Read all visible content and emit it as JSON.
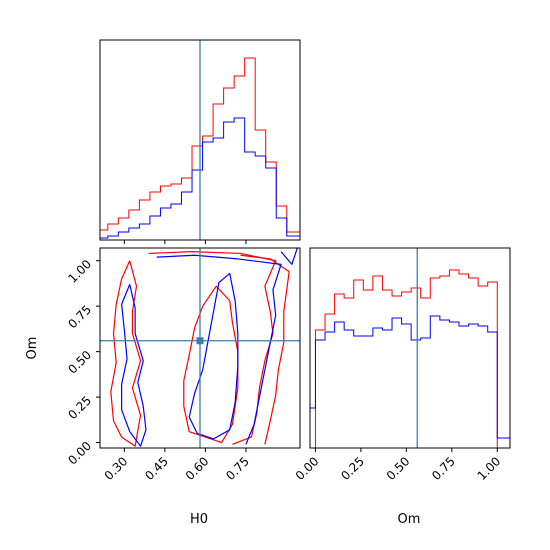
{
  "chart_data": {
    "type": "corner",
    "parameters": [
      "H0",
      "Om"
    ],
    "truth": {
      "H0": 0.58,
      "Om": 0.56
    },
    "colors": {
      "series_1": "#ff0000",
      "series_2": "#0000ff",
      "truth": "#3a7fb0"
    },
    "panels": [
      {
        "id": "hist-h0",
        "type": "step-histogram",
        "x_param": "H0",
        "xlim": [
          0.21,
          0.95
        ],
        "xticks": [
          0.3,
          0.45,
          0.6,
          0.75
        ],
        "yticks_shown": false,
        "ylim": [
          0,
          1.0
        ],
        "bin_edges": [
          0.21,
          0.2389,
          0.2779,
          0.3168,
          0.3558,
          0.3947,
          0.4337,
          0.4726,
          0.5116,
          0.5505,
          0.5895,
          0.6284,
          0.6674,
          0.7063,
          0.7453,
          0.7842,
          0.8232,
          0.8621,
          0.9011,
          0.95
        ],
        "series": [
          {
            "color": "#ff0000",
            "values": [
              0.05,
              0.08,
              0.11,
              0.15,
              0.2,
              0.24,
              0.27,
              0.28,
              0.31,
              0.47,
              0.52,
              0.68,
              0.76,
              0.82,
              0.91,
              0.55,
              0.39,
              0.17,
              0.04
            ]
          },
          {
            "color": "#0000ff",
            "values": [
              0.01,
              0.02,
              0.04,
              0.06,
              0.08,
              0.12,
              0.16,
              0.18,
              0.24,
              0.35,
              0.49,
              0.51,
              0.59,
              0.61,
              0.44,
              0.42,
              0.36,
              0.11,
              0.02
            ]
          }
        ]
      },
      {
        "id": "contour-h0-om",
        "type": "contour",
        "x_param": "H0",
        "y_param": "Om",
        "xlim": [
          0.21,
          0.95
        ],
        "ylim": [
          -0.03,
          1.07
        ],
        "xticks": [
          0.3,
          0.45,
          0.6,
          0.75
        ],
        "yticks": [
          0.0,
          0.25,
          0.5,
          0.75,
          1.0
        ],
        "contours": [
          {
            "color": "#ff0000",
            "points": [
              [
                0.32,
                1.0
              ],
              [
                0.345,
                0.86
              ],
              [
                0.33,
                0.72
              ],
              [
                0.33,
                0.6
              ],
              [
                0.36,
                0.45
              ],
              [
                0.33,
                0.3
              ],
              [
                0.36,
                0.15
              ],
              [
                0.34,
                -0.02
              ],
              [
                0.29,
                0.03
              ],
              [
                0.26,
                0.12
              ],
              [
                0.25,
                0.28
              ],
              [
                0.27,
                0.44
              ],
              [
                0.26,
                0.6
              ],
              [
                0.27,
                0.76
              ],
              [
                0.29,
                0.9
              ],
              [
                0.32,
                1.0
              ]
            ]
          },
          {
            "color": "#ff0000",
            "points": [
              [
                0.52,
                0.2
              ],
              [
                0.54,
                0.06
              ],
              [
                0.6,
                0.03
              ],
              [
                0.66,
                0.0
              ],
              [
                0.7,
                0.1
              ],
              [
                0.72,
                0.3
              ],
              [
                0.72,
                0.5
              ],
              [
                0.7,
                0.66
              ],
              [
                0.69,
                0.78
              ],
              [
                0.64,
                0.86
              ],
              [
                0.59,
                0.75
              ],
              [
                0.56,
                0.63
              ],
              [
                0.54,
                0.48
              ],
              [
                0.52,
                0.34
              ],
              [
                0.52,
                0.2
              ]
            ]
          },
          {
            "color": "#ff0000",
            "points": [
              [
                0.39,
                1.04
              ],
              [
                0.55,
                1.05
              ],
              [
                0.73,
                1.04
              ],
              [
                0.86,
                1.0
              ],
              [
                0.82,
                0.86
              ],
              [
                0.84,
                0.72
              ],
              [
                0.85,
                0.6
              ],
              [
                0.82,
                0.45
              ],
              [
                0.8,
                0.3
              ],
              [
                0.79,
                0.16
              ],
              [
                0.77,
                0.03
              ],
              [
                0.7,
                -0.01
              ]
            ]
          },
          {
            "color": "#ff0000",
            "points": [
              [
                0.73,
                1.03
              ],
              [
                0.84,
                1.01
              ],
              [
                0.91,
                0.94
              ],
              [
                0.89,
                0.72
              ],
              [
                0.89,
                0.55
              ],
              [
                0.87,
                0.4
              ],
              [
                0.86,
                0.26
              ],
              [
                0.84,
                0.12
              ],
              [
                0.82,
                -0.01
              ]
            ]
          },
          {
            "color": "#0000ff",
            "points": [
              [
                0.32,
                0.87
              ],
              [
                0.34,
                0.74
              ],
              [
                0.34,
                0.6
              ],
              [
                0.37,
                0.45
              ],
              [
                0.35,
                0.33
              ],
              [
                0.37,
                0.2
              ],
              [
                0.38,
                0.07
              ],
              [
                0.36,
                -0.02
              ],
              [
                0.32,
                0.06
              ],
              [
                0.29,
                0.18
              ],
              [
                0.29,
                0.32
              ],
              [
                0.31,
                0.46
              ],
              [
                0.3,
                0.62
              ],
              [
                0.29,
                0.76
              ],
              [
                0.32,
                0.87
              ]
            ]
          },
          {
            "color": "#0000ff",
            "points": [
              [
                0.54,
                0.14
              ],
              [
                0.57,
                0.05
              ],
              [
                0.63,
                0.02
              ],
              [
                0.69,
                0.07
              ],
              [
                0.71,
                0.22
              ],
              [
                0.72,
                0.42
              ],
              [
                0.72,
                0.6
              ],
              [
                0.71,
                0.78
              ],
              [
                0.69,
                0.93
              ],
              [
                0.65,
                0.88
              ],
              [
                0.63,
                0.72
              ],
              [
                0.61,
                0.56
              ],
              [
                0.59,
                0.4
              ],
              [
                0.56,
                0.27
              ],
              [
                0.54,
                0.14
              ]
            ]
          },
          {
            "color": "#0000ff",
            "points": [
              [
                0.42,
                1.02
              ],
              [
                0.56,
                1.03
              ],
              [
                0.72,
                1.01
              ],
              [
                0.88,
                0.98
              ],
              [
                0.85,
                0.84
              ],
              [
                0.86,
                0.7
              ],
              [
                0.84,
                0.55
              ],
              [
                0.82,
                0.4
              ],
              [
                0.8,
                0.25
              ],
              [
                0.78,
                0.1
              ],
              [
                0.75,
                -0.01
              ]
            ]
          },
          {
            "color": "#0000ff",
            "points": [
              [
                0.88,
                1.05
              ],
              [
                0.92,
                0.98
              ],
              [
                0.94,
                1.07
              ]
            ]
          }
        ]
      },
      {
        "id": "hist-om",
        "type": "step-histogram",
        "x_param": "Om",
        "xlim": [
          -0.03,
          1.07
        ],
        "xticks": [
          0.0,
          0.25,
          0.5,
          0.75,
          1.0
        ],
        "yticks_shown": false,
        "ylim": [
          0,
          1.0
        ],
        "bin_edges": [
          -0.03,
          0.0,
          0.0526,
          0.1053,
          0.1579,
          0.2105,
          0.2632,
          0.3158,
          0.3684,
          0.4211,
          0.4737,
          0.5263,
          0.5789,
          0.6316,
          0.6842,
          0.7368,
          0.7895,
          0.8421,
          0.8947,
          0.9474,
          1.0,
          1.07
        ],
        "series": [
          {
            "color": "#ff0000",
            "values": [
              0.0,
              0.59,
              0.67,
              0.77,
              0.75,
              0.84,
              0.79,
              0.86,
              0.79,
              0.76,
              0.78,
              0.8,
              0.75,
              0.85,
              0.86,
              0.89,
              0.87,
              0.85,
              0.81,
              0.83,
              0.0
            ]
          },
          {
            "color": "#0000ff",
            "values": [
              0.2,
              0.54,
              0.58,
              0.63,
              0.59,
              0.56,
              0.56,
              0.6,
              0.59,
              0.65,
              0.62,
              0.54,
              0.55,
              0.66,
              0.64,
              0.63,
              0.61,
              0.62,
              0.61,
              0.58,
              0.05
            ]
          }
        ]
      }
    ]
  }
}
